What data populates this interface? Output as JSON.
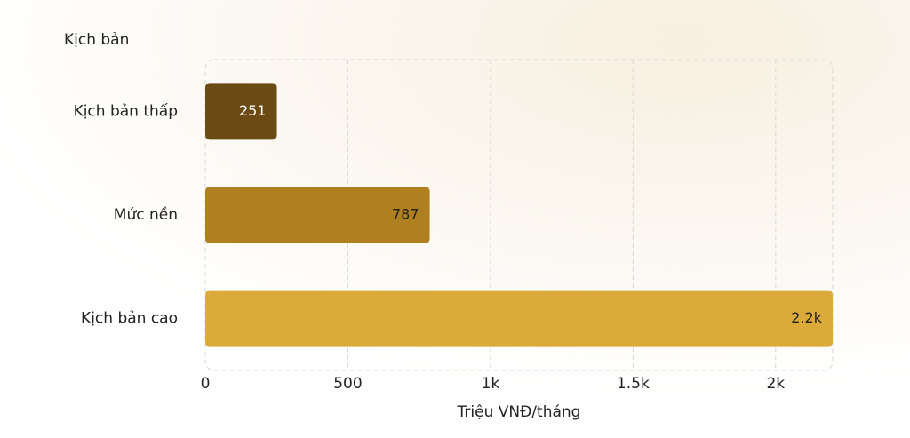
{
  "chart_data": {
    "type": "hbar",
    "y_axis_title": "Kịch bản",
    "x_axis_title": "Triệu VNĐ/tháng",
    "categories": [
      "Kịch bản thấp",
      "Mức nền",
      "Kịch bản cao"
    ],
    "values": [
      251,
      787,
      2200
    ],
    "value_labels": [
      "251",
      "787",
      "2.2k"
    ],
    "colors": [
      "#6b4a14",
      "#b08020",
      "#dcaa3a"
    ],
    "xlim": [
      0,
      2200
    ],
    "xticks": [
      0,
      500,
      {
        "value": 1000,
        "label": "1k"
      },
      {
        "value": 1500,
        "label": "1.5k"
      },
      {
        "value": 2000,
        "label": "2k"
      }
    ],
    "grid": true
  }
}
